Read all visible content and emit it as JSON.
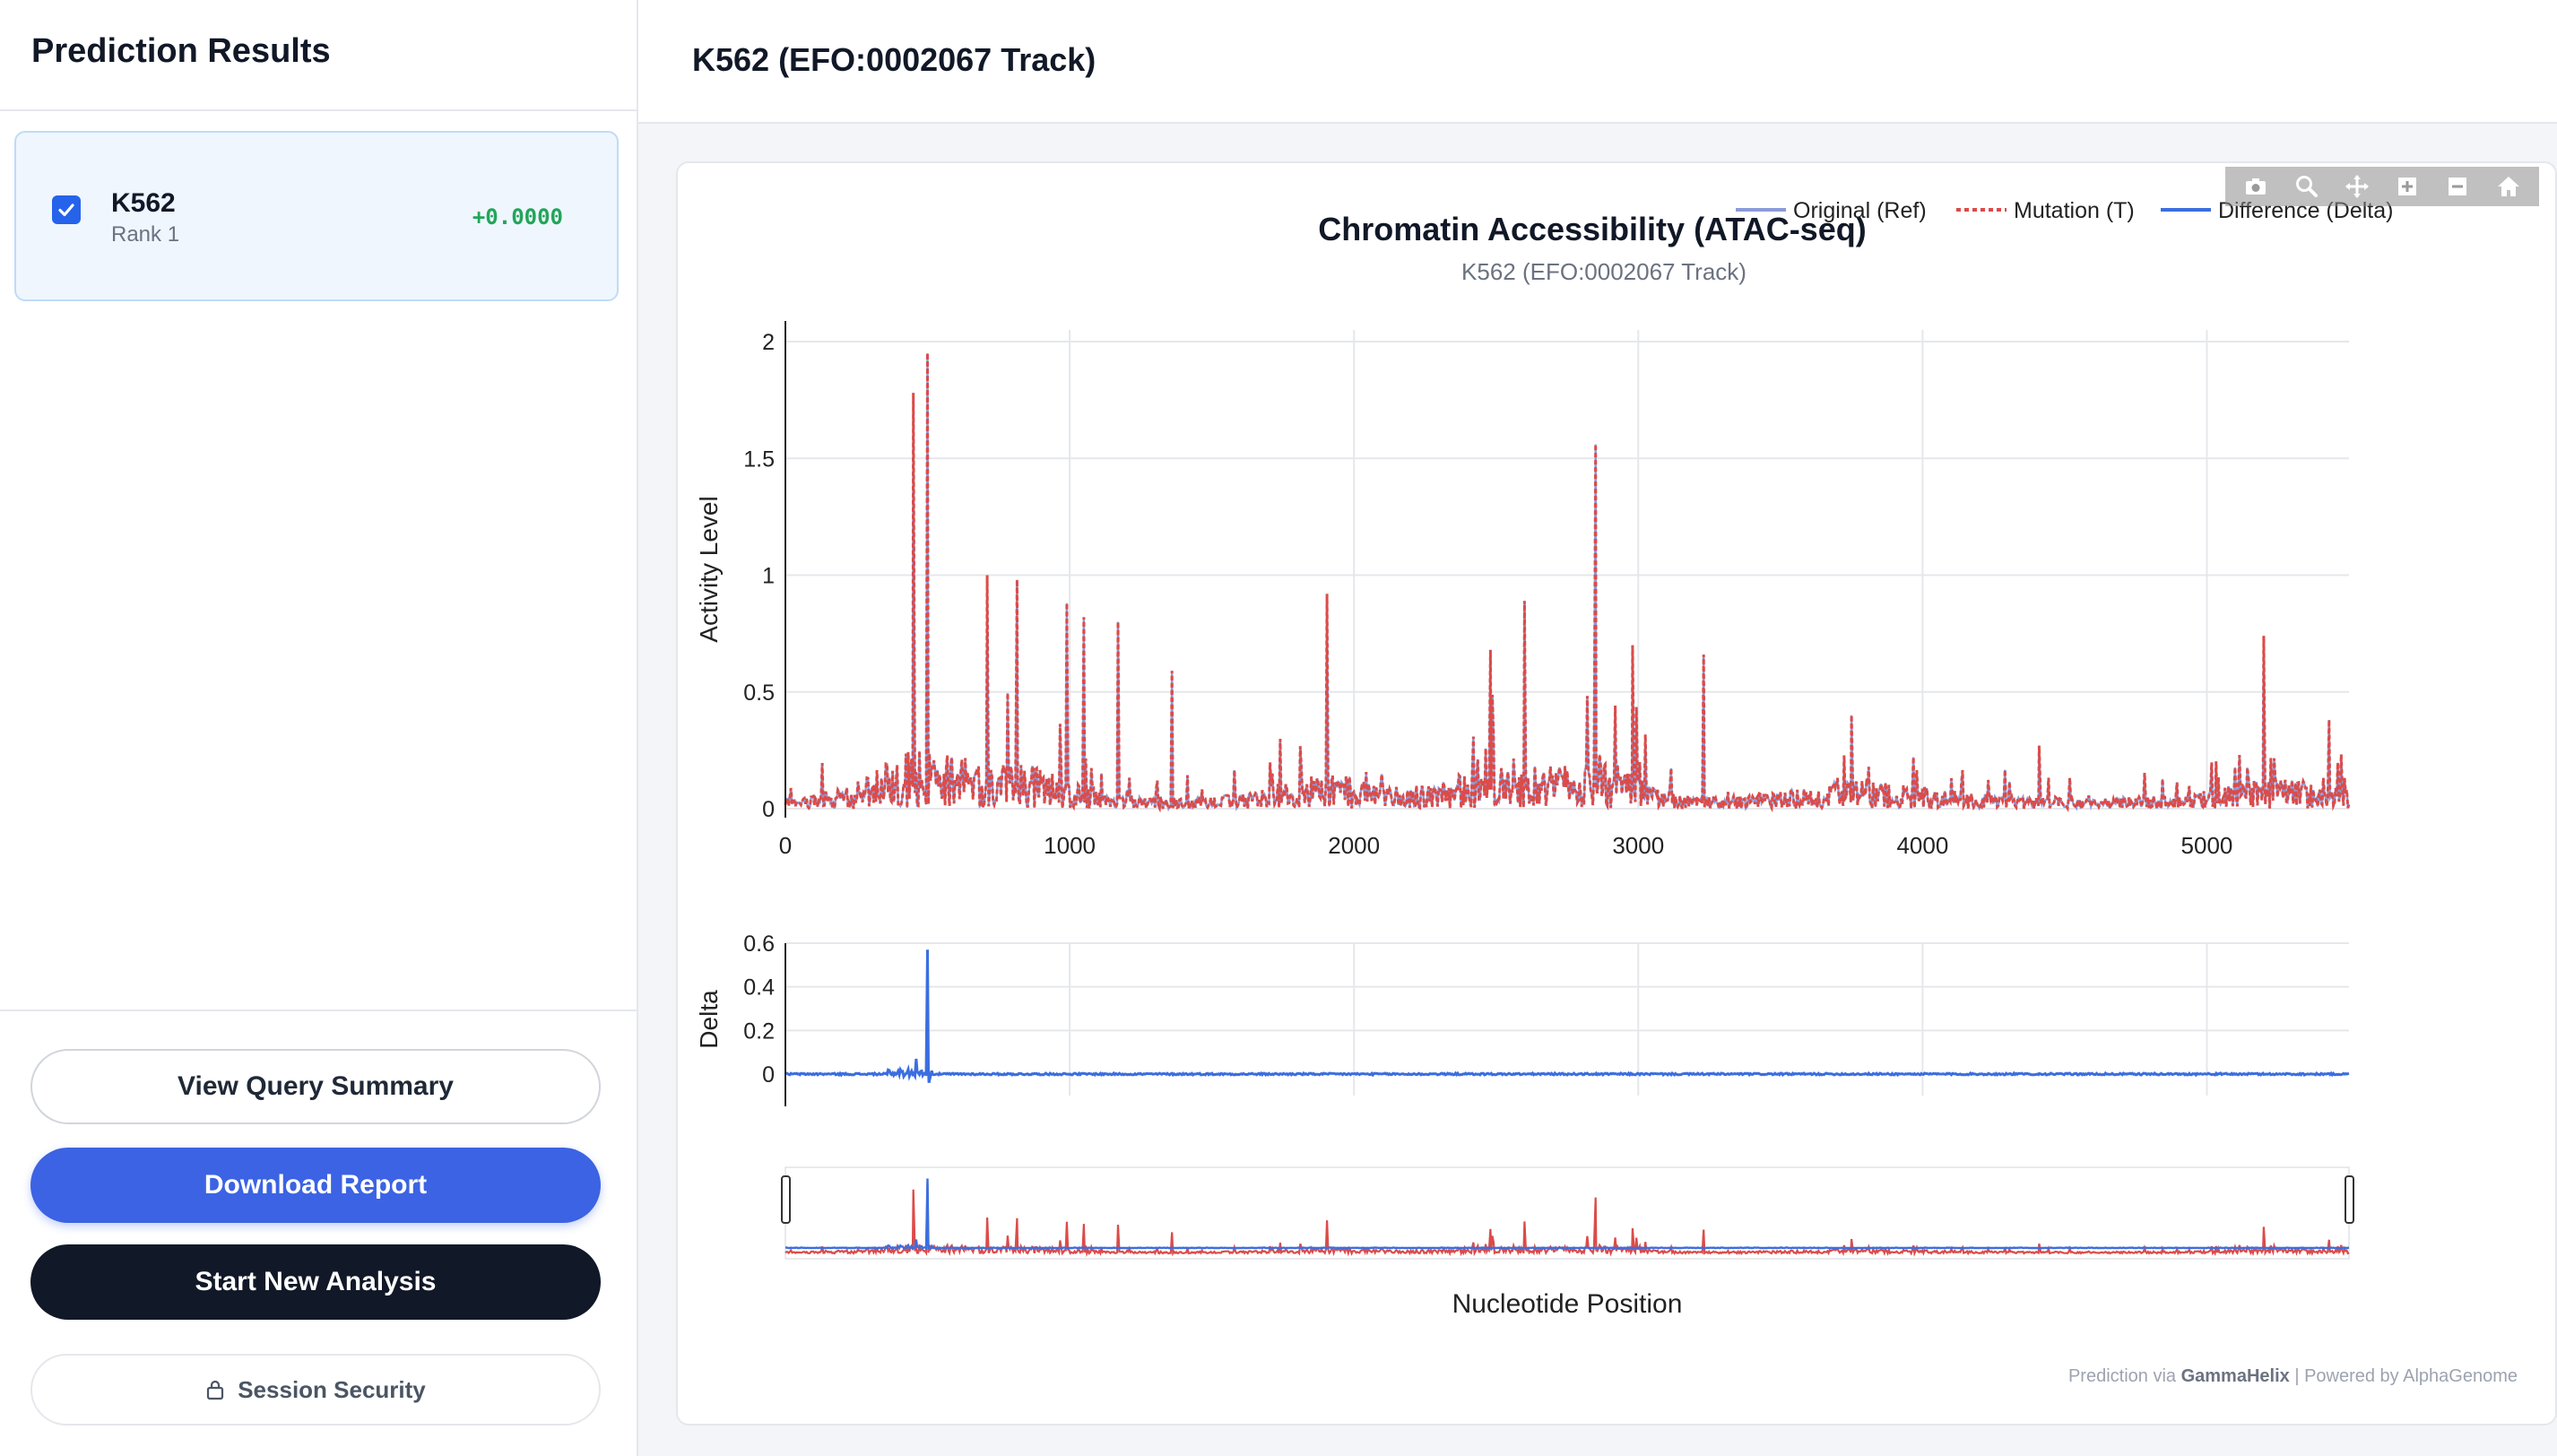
{
  "sidebar": {
    "title": "Prediction Results",
    "results": [
      {
        "name": "K562",
        "rank": "Rank 1",
        "score": "+0.0000",
        "checked": true
      }
    ],
    "buttons": {
      "view_summary": "View Query Summary",
      "download": "Download Report",
      "new_analysis": "Start New Analysis",
      "security": "Session Security"
    }
  },
  "main": {
    "title": "K562 (EFO:0002067 Track)"
  },
  "chart_data": {
    "type": "line",
    "title": "Chromatin Accessibility (ATAC-seq)",
    "subtitle": "K562 (EFO:0002067 Track)",
    "xlabel": "Nucleotide Position",
    "ylabel": "Activity Level",
    "ylabel_delta": "Delta",
    "xlim": [
      0,
      5500
    ],
    "ylim": [
      0,
      2.05
    ],
    "ylim_delta": [
      -0.05,
      0.6
    ],
    "xticks": [
      "0",
      "1000",
      "2000",
      "3000",
      "4000",
      "5000"
    ],
    "yticks": [
      "0",
      "0.5",
      "1",
      "1.5",
      "2"
    ],
    "yticks_delta": [
      "0",
      "0.2",
      "0.4",
      "0.6"
    ],
    "legend": [
      "Original (Ref)",
      "Mutation (T)",
      "Difference (Delta)"
    ],
    "legend_placement": "top-right",
    "grid": true,
    "colors": {
      "ref": "#8b9bd8",
      "mut": "#dc4b48",
      "delta": "#3b6ee0"
    },
    "peaks": [
      {
        "x": 450,
        "y": 1.78
      },
      {
        "x": 500,
        "y": 1.95
      },
      {
        "x": 710,
        "y": 1.0
      },
      {
        "x": 815,
        "y": 0.98
      },
      {
        "x": 990,
        "y": 0.88
      },
      {
        "x": 1050,
        "y": 0.82
      },
      {
        "x": 1170,
        "y": 0.8
      },
      {
        "x": 1360,
        "y": 0.59
      },
      {
        "x": 1905,
        "y": 0.92
      },
      {
        "x": 2480,
        "y": 0.68
      },
      {
        "x": 2600,
        "y": 0.89
      },
      {
        "x": 2850,
        "y": 1.56
      },
      {
        "x": 2980,
        "y": 0.7
      },
      {
        "x": 3230,
        "y": 0.66
      },
      {
        "x": 3750,
        "y": 0.4
      },
      {
        "x": 4410,
        "y": 0.27
      },
      {
        "x": 5200,
        "y": 0.74
      },
      {
        "x": 5430,
        "y": 0.38
      }
    ],
    "delta_peaks": [
      {
        "x": 500,
        "y": 0.57
      },
      {
        "x": 460,
        "y": 0.07
      },
      {
        "x": 505,
        "y": -0.04
      }
    ]
  },
  "footer": {
    "credit_prefix": "Prediction via",
    "credit_brand": "GammaHelix",
    "credit_suffix": "| Powered by AlphaGenome"
  },
  "icons": [
    "checkbox-checked-icon",
    "lock-icon",
    "camera-icon",
    "zoom-icon",
    "pan-icon",
    "zoom-in-icon",
    "zoom-out-icon",
    "home-icon"
  ]
}
